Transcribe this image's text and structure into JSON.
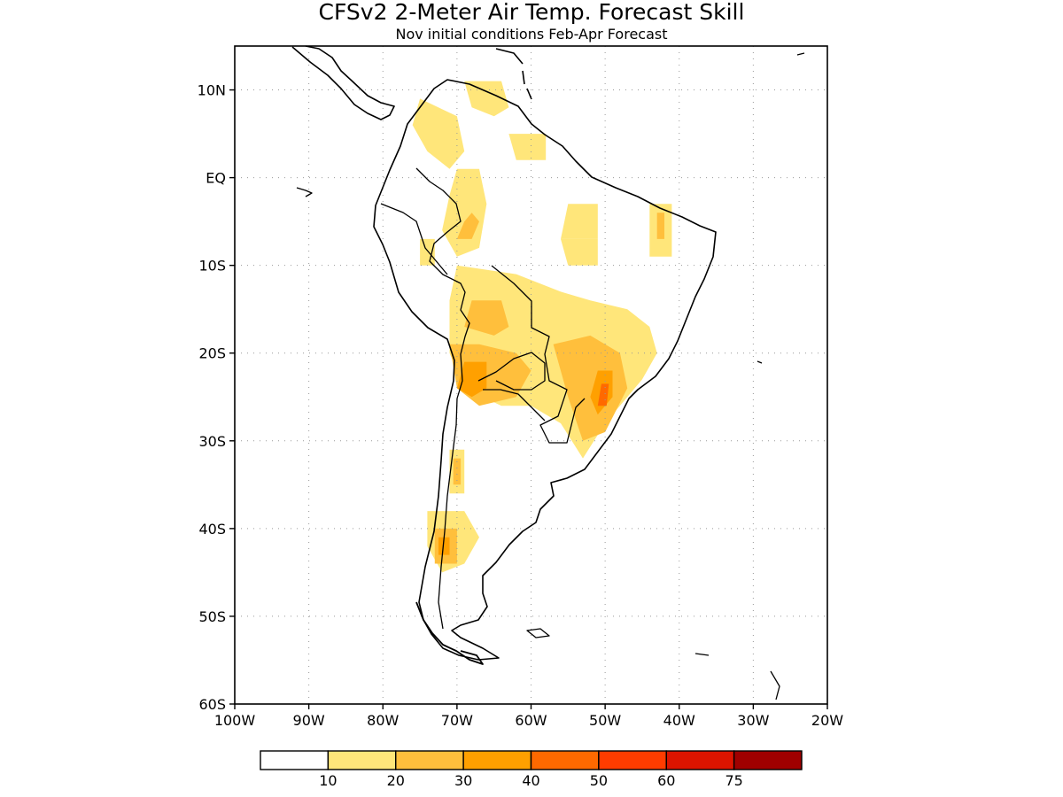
{
  "title": "CFSv2 2-Meter Air Temp. Forecast Skill",
  "subtitle": "Nov initial conditions  Feb-Apr Forecast",
  "map": {
    "lon_range": [
      -100,
      -20
    ],
    "lat_range": [
      -60,
      15
    ],
    "lon_ticks": [
      {
        "value": -100,
        "label": "100W"
      },
      {
        "value": -90,
        "label": "90W"
      },
      {
        "value": -80,
        "label": "80W"
      },
      {
        "value": -70,
        "label": "70W"
      },
      {
        "value": -60,
        "label": "60W"
      },
      {
        "value": -50,
        "label": "50W"
      },
      {
        "value": -40,
        "label": "40W"
      },
      {
        "value": -30,
        "label": "30W"
      },
      {
        "value": -20,
        "label": "20W"
      }
    ],
    "lat_ticks": [
      {
        "value": 10,
        "label": "10N"
      },
      {
        "value": 0,
        "label": "EQ"
      },
      {
        "value": -10,
        "label": "10S"
      },
      {
        "value": -20,
        "label": "20S"
      },
      {
        "value": -30,
        "label": "30S"
      },
      {
        "value": -40,
        "label": "40S"
      },
      {
        "value": -50,
        "label": "50S"
      },
      {
        "value": -60,
        "label": "60S"
      }
    ],
    "grid": "dotted"
  },
  "colorbar": {
    "colors": [
      "#ffffff",
      "#ffe67a",
      "#ffbf3c",
      "#ffa000",
      "#ff6900",
      "#ff3c00",
      "#dc1400",
      "#a00000"
    ],
    "labels": [
      "10",
      "20",
      "30",
      "40",
      "50",
      "60",
      "75"
    ]
  },
  "skill_regions": [
    {
      "level": 1,
      "lon": [
        -75,
        -70,
        -69,
        -71,
        -74,
        -76
      ],
      "lat": [
        9,
        7,
        3,
        1,
        3,
        6
      ]
    },
    {
      "level": 1,
      "lon": [
        -69,
        -64,
        -63,
        -65,
        -68
      ],
      "lat": [
        11,
        11,
        8,
        7,
        8
      ]
    },
    {
      "level": 1,
      "lon": [
        -70,
        -67,
        -66,
        -67,
        -70,
        -72,
        -71
      ],
      "lat": [
        1,
        1,
        -3,
        -8,
        -9,
        -6,
        -2
      ]
    },
    {
      "level": 2,
      "lon": [
        -68,
        -67,
        -68,
        -70,
        -69
      ],
      "lat": [
        -4,
        -5,
        -7,
        -7,
        -5
      ]
    },
    {
      "level": 1,
      "lon": [
        -75,
        -73,
        -73,
        -75
      ],
      "lat": [
        -7,
        -7,
        -10,
        -10
      ]
    },
    {
      "level": 1,
      "lon": [
        -63,
        -58,
        -58,
        -62
      ],
      "lat": [
        5,
        5,
        2,
        2
      ]
    },
    {
      "level": 1,
      "lon": [
        -55,
        -51,
        -51,
        -56
      ],
      "lat": [
        -3,
        -3,
        -7,
        -7
      ]
    },
    {
      "level": 1,
      "lon": [
        -44,
        -41,
        -41,
        -44
      ],
      "lat": [
        -3,
        -3,
        -9,
        -9
      ]
    },
    {
      "level": 2,
      "lon": [
        -43,
        -42,
        -42,
        -43
      ],
      "lat": [
        -4,
        -4,
        -7,
        -7
      ]
    },
    {
      "level": 1,
      "lon": [
        -56,
        -51,
        -51,
        -55
      ],
      "lat": [
        -7,
        -7,
        -10,
        -10
      ]
    },
    {
      "level": 1,
      "lon": [
        -70,
        -62,
        -56,
        -52,
        -47,
        -44,
        -43,
        -45,
        -50,
        -53,
        -56,
        -60,
        -64,
        -69,
        -71,
        -71
      ],
      "lat": [
        -10,
        -11,
        -13,
        -14,
        -15,
        -17,
        -20,
        -23,
        -28,
        -32,
        -28,
        -26,
        -26,
        -24,
        -20,
        -14
      ]
    },
    {
      "level": 2,
      "lon": [
        -68,
        -64,
        -63,
        -65,
        -69
      ],
      "lat": [
        -14,
        -14,
        -17,
        -18,
        -17
      ]
    },
    {
      "level": 2,
      "lon": [
        -71,
        -67,
        -62,
        -60,
        -62,
        -67,
        -70
      ],
      "lat": [
        -19,
        -19,
        -20,
        -22,
        -25,
        -26,
        -24
      ]
    },
    {
      "level": 3,
      "lon": [
        -69,
        -66,
        -66,
        -68,
        -70
      ],
      "lat": [
        -21,
        -21,
        -24,
        -25,
        -24
      ]
    },
    {
      "level": 2,
      "lon": [
        -57,
        -52,
        -48,
        -47,
        -50,
        -53,
        -55
      ],
      "lat": [
        -19,
        -18,
        -20,
        -24,
        -29,
        -30,
        -25
      ]
    },
    {
      "level": 3,
      "lon": [
        -51,
        -49,
        -49,
        -51,
        -52
      ],
      "lat": [
        -22,
        -22,
        -25,
        -27,
        -25
      ]
    },
    {
      "level": 4,
      "lon": [
        -50.5,
        -49.5,
        -49.8,
        -51
      ],
      "lat": [
        -23.5,
        -23.5,
        -26,
        -26
      ]
    },
    {
      "level": 1,
      "lon": [
        -71,
        -69,
        -69,
        -71
      ],
      "lat": [
        -31,
        -31,
        -36,
        -36
      ]
    },
    {
      "level": 2,
      "lon": [
        -70.5,
        -69.5,
        -69.5,
        -70.5
      ],
      "lat": [
        -32,
        -32,
        -35,
        -35
      ]
    },
    {
      "level": 1,
      "lon": [
        -74,
        -69,
        -67,
        -69,
        -72,
        -74
      ],
      "lat": [
        -38,
        -38,
        -41,
        -44,
        -45,
        -42
      ]
    },
    {
      "level": 2,
      "lon": [
        -73,
        -70,
        -70,
        -73
      ],
      "lat": [
        -40,
        -40,
        -44,
        -44
      ]
    },
    {
      "level": 3,
      "lon": [
        -72.5,
        -71,
        -71,
        -72.5
      ],
      "lat": [
        -41,
        -41,
        -43,
        -43
      ]
    }
  ]
}
